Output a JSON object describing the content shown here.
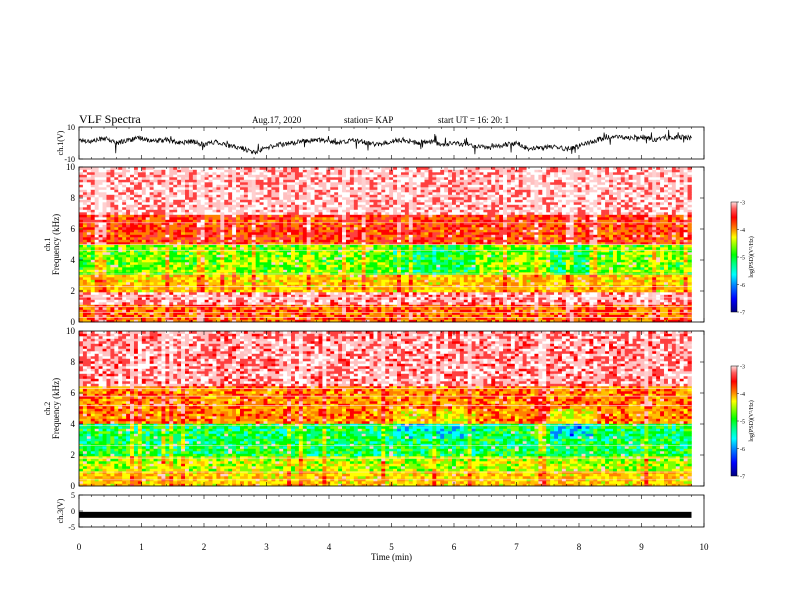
{
  "header": {
    "title": "VLF Spectra",
    "date": "Aug.17, 2020",
    "station": "station= KAP",
    "start": "start  UT =   16: 20: 1"
  },
  "colors": {
    "spectrum_scale": [
      "#000080",
      "#0000ff",
      "#0080ff",
      "#00ffff",
      "#00ff80",
      "#00ff00",
      "#80ff00",
      "#ffff00",
      "#ffc000",
      "#ff8000",
      "#ff0000",
      "#ff4040",
      "#ffc0c0",
      "#ffffff"
    ],
    "trace": "#000000"
  },
  "chart_data": [
    {
      "type": "line",
      "panel": "ch1-voltage",
      "ylabel": "ch.1(V)",
      "ylim": [
        -10,
        10
      ],
      "y_ticks": [
        "10",
        "-10"
      ],
      "xlim": [
        0,
        10
      ],
      "series": [
        {
          "x": [
            0.0,
            0.2,
            0.4,
            0.6,
            0.8,
            1.0,
            1.2,
            1.4,
            1.6,
            1.8,
            2.0,
            2.2,
            2.4,
            2.6,
            2.8,
            3.0,
            3.2,
            3.4,
            3.6,
            3.8,
            4.0,
            4.2,
            4.4,
            4.6,
            4.8,
            5.0,
            5.2,
            5.4,
            5.6,
            5.8,
            6.0,
            6.2,
            6.4,
            6.6,
            6.8,
            7.0,
            7.2,
            7.4,
            7.6,
            7.8,
            8.0,
            8.2,
            8.4,
            8.6,
            8.8,
            9.0,
            9.2,
            9.4,
            9.6,
            9.8
          ],
          "values": [
            2,
            1,
            3,
            0,
            2,
            3,
            1,
            2,
            0,
            1,
            -1,
            1,
            -2,
            -3,
            -6,
            -3,
            -1,
            0,
            1,
            2,
            1,
            0,
            2,
            0,
            -1,
            1,
            2,
            0,
            1,
            -1,
            0,
            -1,
            -2,
            -3,
            -1,
            0,
            -4,
            -3,
            -2,
            -4,
            -2,
            1,
            3,
            4,
            3,
            4,
            2,
            3,
            4,
            3
          ]
        }
      ]
    },
    {
      "type": "heatmap",
      "panel": "ch1-spectrogram",
      "ylabel": "ch.1 Frequency (kHz)",
      "ylim": [
        0,
        10
      ],
      "y_ticks": [
        "0",
        "2",
        "4",
        "6",
        "8",
        "10"
      ],
      "xlim": [
        0,
        10
      ],
      "colorbar": {
        "label": "log(PSD)(V²/Hz)",
        "ticks": [
          "-3",
          "-4",
          "-5",
          "-6",
          "-7"
        ],
        "range": [
          -7,
          -3
        ]
      },
      "bands": [
        {
          "f_low": 0.0,
          "f_high": 1.2,
          "level": -4.2
        },
        {
          "f_low": 1.2,
          "f_high": 2.0,
          "level": -3.4
        },
        {
          "f_low": 2.0,
          "f_high": 3.0,
          "level": -4.6
        },
        {
          "f_low": 3.0,
          "f_high": 5.0,
          "level": -5.2
        },
        {
          "f_low": 5.0,
          "f_high": 7.0,
          "level": -4.0
        },
        {
          "f_low": 7.0,
          "f_high": 10.0,
          "level": -3.3
        }
      ]
    },
    {
      "type": "heatmap",
      "panel": "ch2-spectrogram",
      "ylabel": "ch.2 Frequency (kHz)",
      "ylim": [
        0,
        10
      ],
      "y_ticks": [
        "0",
        "2",
        "4",
        "6",
        "8",
        "10"
      ],
      "xlim": [
        0,
        10
      ],
      "colorbar": {
        "label": "log(PSD)(V²/Hz)",
        "ticks": [
          "-3",
          "-4",
          "-5",
          "-6",
          "-7"
        ],
        "range": [
          -7,
          -3
        ]
      },
      "bands": [
        {
          "f_low": 0.0,
          "f_high": 1.0,
          "level": -4.6
        },
        {
          "f_low": 1.0,
          "f_high": 2.0,
          "level": -5.0
        },
        {
          "f_low": 2.0,
          "f_high": 4.0,
          "level": -5.6
        },
        {
          "f_low": 4.0,
          "f_high": 6.5,
          "level": -4.3
        },
        {
          "f_low": 6.5,
          "f_high": 10.0,
          "level": -3.4
        }
      ]
    },
    {
      "type": "line",
      "panel": "ch3-voltage",
      "ylabel": "ch.3(V)",
      "ylim": [
        -5,
        5
      ],
      "y_ticks": [
        "5",
        "0",
        "-5"
      ],
      "xlim": [
        0,
        10
      ],
      "xlabel": "Time (min)",
      "x_ticks": [
        "0",
        "1",
        "2",
        "3",
        "4",
        "5",
        "6",
        "7",
        "8",
        "9",
        "10"
      ],
      "series": [
        {
          "x": [
            0,
            9.8
          ],
          "values": [
            -1.2,
            -1.2
          ]
        }
      ]
    }
  ]
}
